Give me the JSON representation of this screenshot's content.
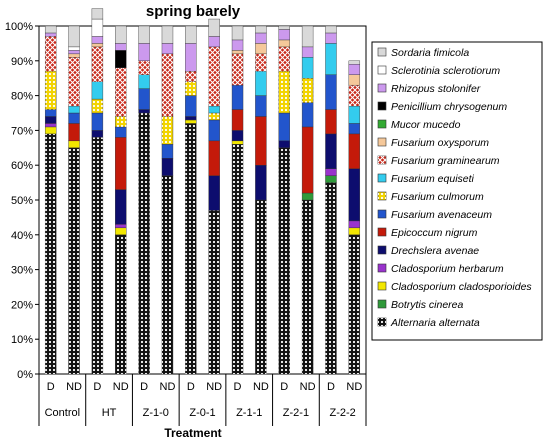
{
  "chart_data": {
    "type": "bar",
    "stacked": true,
    "percent": true,
    "title": "spring barely",
    "xlabel": "Treatment",
    "ylabel": "",
    "ylim": [
      0,
      100
    ],
    "yticks": [
      "0%",
      "10%",
      "20%",
      "30%",
      "40%",
      "50%",
      "60%",
      "70%",
      "80%",
      "90%",
      "100%"
    ],
    "categories": [
      "D",
      "ND",
      "D",
      "ND",
      "D",
      "ND",
      "D",
      "ND",
      "D",
      "ND",
      "D",
      "ND",
      "D",
      "ND"
    ],
    "groups": [
      "Control",
      "HT",
      "Z-1-0",
      "Z-0-1",
      "Z-1-1",
      "Z-2-1",
      "Z-2-2"
    ],
    "legend_position": "right",
    "series": [
      {
        "name": "Alternaria alternata",
        "color": "#111111",
        "pattern": "dots",
        "values": [
          69,
          65,
          68,
          40,
          75,
          57,
          72,
          47,
          66,
          50,
          65,
          50,
          55,
          40
        ]
      },
      {
        "name": "Botrytis cinerea",
        "color": "#2f9a3a",
        "pattern": "none",
        "values": [
          0,
          0,
          0,
          0,
          0,
          0,
          0,
          0,
          0,
          0,
          0,
          2,
          2,
          0
        ]
      },
      {
        "name": "Cladosporium cladosporioides",
        "color": "#f2e700",
        "pattern": "none",
        "values": [
          2,
          2,
          0,
          2,
          0,
          0,
          1,
          0,
          1,
          0,
          0,
          0,
          0,
          2
        ]
      },
      {
        "name": "Cladosporium herbarum",
        "color": "#9933cc",
        "pattern": "none",
        "values": [
          1,
          0,
          0,
          1,
          0,
          0,
          0,
          0,
          0,
          0,
          0,
          0,
          2,
          2
        ]
      },
      {
        "name": "Drechslera avenae",
        "color": "#0d0d6e",
        "pattern": "none",
        "values": [
          2,
          0,
          2,
          10,
          1,
          5,
          1,
          10,
          3,
          10,
          2,
          0,
          10,
          15
        ]
      },
      {
        "name": "Epicoccum nigrum",
        "color": "#c41a0a",
        "pattern": "none",
        "values": [
          0,
          5,
          0,
          15,
          0,
          0,
          0,
          10,
          6,
          14,
          0,
          19,
          7,
          10
        ]
      },
      {
        "name": "Fusarium avenaceum",
        "color": "#2255cc",
        "pattern": "none",
        "values": [
          2,
          3,
          5,
          3,
          6,
          4,
          6,
          6,
          7,
          6,
          8,
          7,
          10,
          3
        ]
      },
      {
        "name": "Fusarium culmorum",
        "color": "#f2d400",
        "pattern": "dots",
        "values": [
          11,
          0,
          4,
          3,
          0,
          8,
          4,
          2,
          0,
          0,
          12,
          7,
          0,
          0
        ]
      },
      {
        "name": "Fusarium equiseti",
        "color": "#33ccee",
        "pattern": "none",
        "values": [
          0,
          2,
          5,
          0,
          4,
          0,
          0,
          2,
          0,
          7,
          0,
          6,
          9,
          5
        ]
      },
      {
        "name": "Fusarium graminearum",
        "color": "#c8281a",
        "pattern": "cross",
        "values": [
          10,
          14,
          10,
          14,
          4,
          18,
          3,
          17,
          9,
          5,
          7,
          0,
          0,
          6
        ]
      },
      {
        "name": "Fusarium oxysporum",
        "color": "#f5c89a",
        "pattern": "none",
        "values": [
          0,
          1,
          1,
          0,
          0,
          0,
          0,
          0,
          1,
          3,
          2,
          0,
          0,
          3
        ]
      },
      {
        "name": "Mucor mucedo",
        "color": "#33aa33",
        "pattern": "none",
        "values": [
          0,
          0,
          0,
          0,
          0,
          0,
          0,
          0,
          0,
          0,
          0,
          0,
          0,
          0
        ]
      },
      {
        "name": "Penicillium chrysogenum",
        "color": "#000000",
        "pattern": "none",
        "values": [
          0,
          0,
          0,
          5,
          0,
          0,
          0,
          0,
          0,
          0,
          0,
          0,
          0,
          0
        ]
      },
      {
        "name": "Rhizopus stolonifer",
        "color": "#cc99ee",
        "pattern": "none",
        "values": [
          1,
          1,
          2,
          2,
          5,
          3,
          8,
          3,
          3,
          3,
          3,
          3,
          3,
          3
        ]
      },
      {
        "name": "Sclerotinia sclerotiorum",
        "color": "#ffffff",
        "pattern": "none",
        "values": [
          0,
          1,
          5,
          0,
          0,
          0,
          0,
          0,
          0,
          0,
          0,
          0,
          0,
          0
        ]
      },
      {
        "name": "Sordaria fimicola",
        "color": "#d9d9d9",
        "pattern": "none",
        "values": [
          2,
          6,
          3,
          5,
          5,
          5,
          5,
          5,
          4,
          2,
          1,
          6,
          2,
          1
        ]
      }
    ]
  }
}
